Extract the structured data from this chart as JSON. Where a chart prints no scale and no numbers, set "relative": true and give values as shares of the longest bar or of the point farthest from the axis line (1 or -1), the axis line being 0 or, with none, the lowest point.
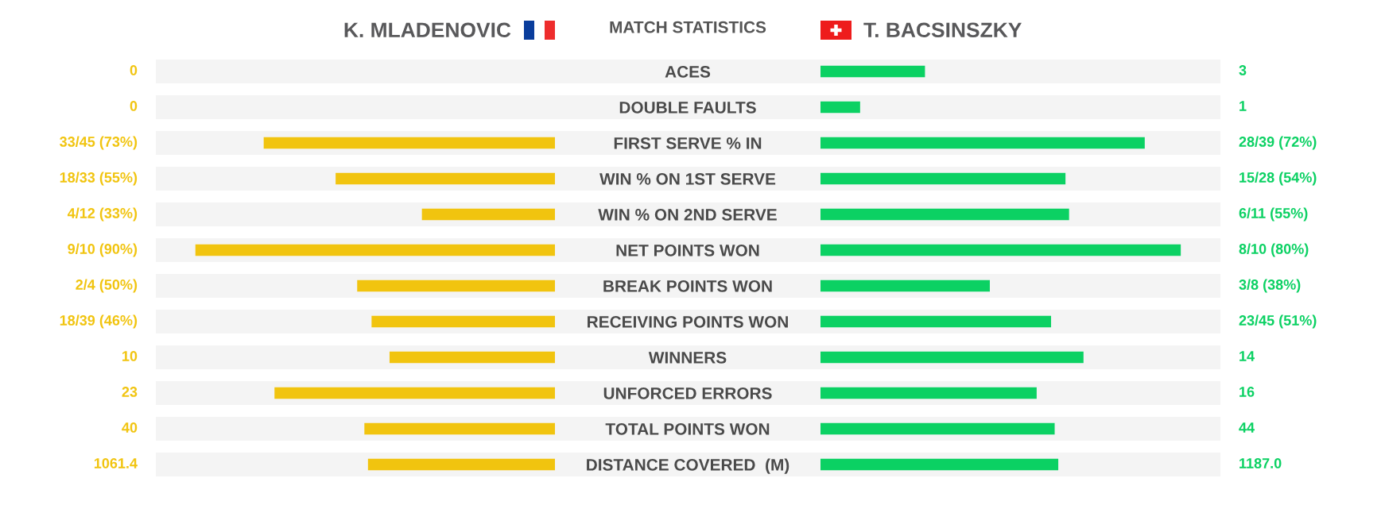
{
  "chart_data": [
    {
      "type": "other",
      "title": "MATCH STATISTICS"
    },
    {
      "type": "bar",
      "orientation": "horizontal",
      "relative": true,
      "title": "K. MLADENOVIC",
      "tick_labels": "y",
      "categories": [
        "ACES",
        "DOUBLE FAULTS",
        "FIRST SERVE % IN",
        "WIN % ON 1ST SERVE",
        "WIN % ON 2ND SERVE",
        "NET POINTS WON",
        "BREAK POINTS WON",
        "RECEIVING POINTS WON",
        "WINNERS",
        "UNFORCED ERRORS",
        "TOTAL POINTS WON",
        "DISTANCE COVERED  (M)"
      ],
      "series": [
        {
          "color": "#f1c40f",
          "values": [
            0,
            0,
            -0.81,
            -0.61,
            -0.37,
            -1,
            -0.55,
            -0.51,
            -0.46,
            -0.78,
            -0.53,
            -0.52
          ]
        }
      ],
      "annotations": [
        "0",
        "0",
        "33/45 (73%)",
        "18/33 (55%)",
        "4/12 (33%)",
        "9/10 (90%)",
        "2/4 (50%)",
        "18/39 (46%)",
        "10",
        "23",
        "40",
        "1061.4"
      ]
    },
    {
      "type": "bar",
      "orientation": "horizontal",
      "relative": true,
      "title": "T. BACSINSZKY",
      "categories": [
        null,
        null,
        null,
        null,
        null,
        null,
        null,
        null,
        null,
        null,
        null,
        null
      ],
      "series": [
        {
          "color": "#0bd163",
          "values": [
            0.29,
            0.11,
            0.9,
            0.68,
            0.69,
            1,
            0.47,
            0.64,
            0.73,
            0.6,
            0.65,
            0.66
          ]
        }
      ],
      "annotations": [
        "3",
        "1",
        "28/39 (72%)",
        "15/28 (54%)",
        "6/11 (55%)",
        "8/10 (80%)",
        "3/8 (38%)",
        "23/45 (51%)",
        "14",
        "16",
        "44",
        "1187.0"
      ]
    }
  ]
}
